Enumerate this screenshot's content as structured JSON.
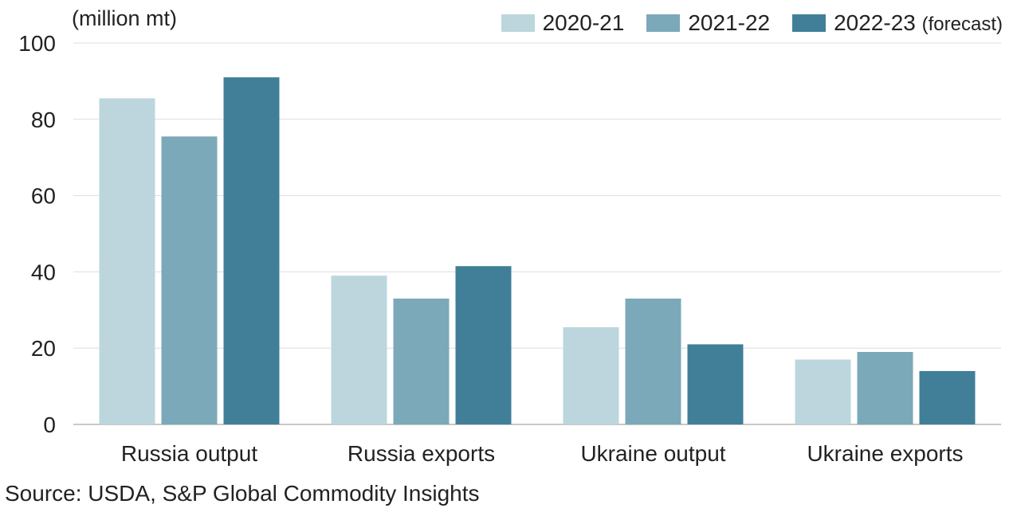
{
  "chart_data": {
    "type": "bar",
    "title": "",
    "unit_label": "(million mt)",
    "categories": [
      "Russia output",
      "Russia exports",
      "Ukraine output",
      "Ukraine exports"
    ],
    "series": [
      {
        "name": "2020-21",
        "note": "",
        "color": "#bdd6de",
        "values": [
          85.5,
          39,
          25.5,
          17
        ]
      },
      {
        "name": "2021-22",
        "note": "",
        "color": "#7ba9b9",
        "values": [
          75.5,
          33,
          33,
          19
        ]
      },
      {
        "name": "2022-23",
        "note": "(forecast)",
        "color": "#417f98",
        "values": [
          91,
          41.5,
          21,
          14
        ]
      }
    ],
    "ylim": [
      0,
      100
    ],
    "yticks": [
      "0",
      "20",
      "40",
      "60",
      "80",
      "100"
    ],
    "xlabel": "",
    "ylabel": "",
    "grid": true,
    "legend_position": "top-right"
  },
  "source": "Source: USDA, S&P Global Commodity Insights"
}
